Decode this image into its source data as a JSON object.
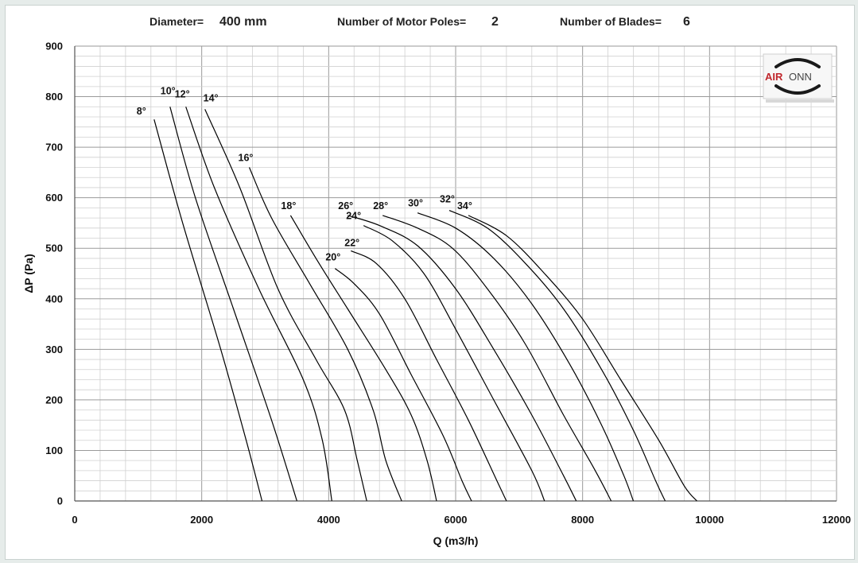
{
  "header": {
    "diameter_label": "Diameter=",
    "diameter_value": "400 mm",
    "poles_label": "Number of Motor Poles=",
    "poles_value": "2",
    "blades_label": "Number of Blades=",
    "blades_value": "6"
  },
  "logo": {
    "text_a": "AIR",
    "text_b": "ONN"
  },
  "chart_data": {
    "type": "line",
    "xlabel": "Q (m3/h)",
    "ylabel": "ΔP (Pa)",
    "xlim": [
      0,
      12000
    ],
    "ylim": [
      0,
      900
    ],
    "x_ticks": [
      "0",
      "2000",
      "4000",
      "6000",
      "8000",
      "10000",
      "12000"
    ],
    "y_ticks": [
      "0",
      "100",
      "200",
      "300",
      "400",
      "500",
      "600",
      "700",
      "800",
      "900"
    ],
    "grid": true,
    "series": [
      {
        "name": "8°",
        "points": [
          [
            1250,
            755
          ],
          [
            1700,
            550
          ],
          [
            2300,
            300
          ],
          [
            2700,
            120
          ],
          [
            2950,
            0
          ]
        ]
      },
      {
        "name": "10°",
        "points": [
          [
            1500,
            780
          ],
          [
            1900,
            600
          ],
          [
            2500,
            380
          ],
          [
            3100,
            160
          ],
          [
            3500,
            0
          ]
        ]
      },
      {
        "name": "12°",
        "points": [
          [
            1750,
            780
          ],
          [
            2200,
            620
          ],
          [
            2900,
            420
          ],
          [
            3600,
            240
          ],
          [
            3900,
            120
          ],
          [
            4050,
            0
          ]
        ]
      },
      {
        "name": "14°",
        "points": [
          [
            2050,
            775
          ],
          [
            2600,
            620
          ],
          [
            3200,
            420
          ],
          [
            3800,
            280
          ],
          [
            4250,
            180
          ],
          [
            4450,
            80
          ],
          [
            4600,
            0
          ]
        ]
      },
      {
        "name": "16°",
        "points": [
          [
            2750,
            660
          ],
          [
            3100,
            560
          ],
          [
            3700,
            430
          ],
          [
            4300,
            300
          ],
          [
            4700,
            180
          ],
          [
            4900,
            80
          ],
          [
            5150,
            0
          ]
        ]
      },
      {
        "name": "18°",
        "points": [
          [
            3400,
            565
          ],
          [
            3800,
            480
          ],
          [
            4300,
            380
          ],
          [
            4900,
            260
          ],
          [
            5300,
            170
          ],
          [
            5550,
            80
          ],
          [
            5700,
            0
          ]
        ]
      },
      {
        "name": "20°",
        "points": [
          [
            4100,
            460
          ],
          [
            4400,
            430
          ],
          [
            4800,
            370
          ],
          [
            5300,
            250
          ],
          [
            5800,
            130
          ],
          [
            6100,
            40
          ],
          [
            6250,
            0
          ]
        ]
      },
      {
        "name": "22°",
        "points": [
          [
            4350,
            495
          ],
          [
            4750,
            470
          ],
          [
            5200,
            400
          ],
          [
            5700,
            280
          ],
          [
            6200,
            160
          ],
          [
            6650,
            40
          ],
          [
            6800,
            0
          ]
        ]
      },
      {
        "name": "24°",
        "points": [
          [
            4550,
            545
          ],
          [
            5000,
            515
          ],
          [
            5500,
            450
          ],
          [
            6000,
            340
          ],
          [
            6600,
            200
          ],
          [
            7200,
            60
          ],
          [
            7400,
            0
          ]
        ]
      },
      {
        "name": "26°",
        "points": [
          [
            4300,
            565
          ],
          [
            4800,
            545
          ],
          [
            5400,
            505
          ],
          [
            6000,
            420
          ],
          [
            6600,
            300
          ],
          [
            7200,
            170
          ],
          [
            7700,
            50
          ],
          [
            7900,
            0
          ]
        ]
      },
      {
        "name": "28°",
        "points": [
          [
            4850,
            565
          ],
          [
            5400,
            540
          ],
          [
            5950,
            500
          ],
          [
            6500,
            420
          ],
          [
            7100,
            310
          ],
          [
            7700,
            170
          ],
          [
            8200,
            60
          ],
          [
            8450,
            0
          ]
        ]
      },
      {
        "name": "30°",
        "points": [
          [
            5400,
            570
          ],
          [
            6000,
            540
          ],
          [
            6600,
            480
          ],
          [
            7200,
            390
          ],
          [
            7800,
            270
          ],
          [
            8300,
            150
          ],
          [
            8650,
            50
          ],
          [
            8800,
            0
          ]
        ]
      },
      {
        "name": "32°",
        "points": [
          [
            5900,
            575
          ],
          [
            6500,
            540
          ],
          [
            7100,
            470
          ],
          [
            7700,
            380
          ],
          [
            8300,
            260
          ],
          [
            8800,
            140
          ],
          [
            9150,
            40
          ],
          [
            9300,
            0
          ]
        ]
      },
      {
        "name": "34°",
        "points": [
          [
            6200,
            565
          ],
          [
            6800,
            525
          ],
          [
            7400,
            450
          ],
          [
            8000,
            360
          ],
          [
            8600,
            240
          ],
          [
            9200,
            120
          ],
          [
            9600,
            30
          ],
          [
            9800,
            0
          ]
        ]
      }
    ]
  }
}
